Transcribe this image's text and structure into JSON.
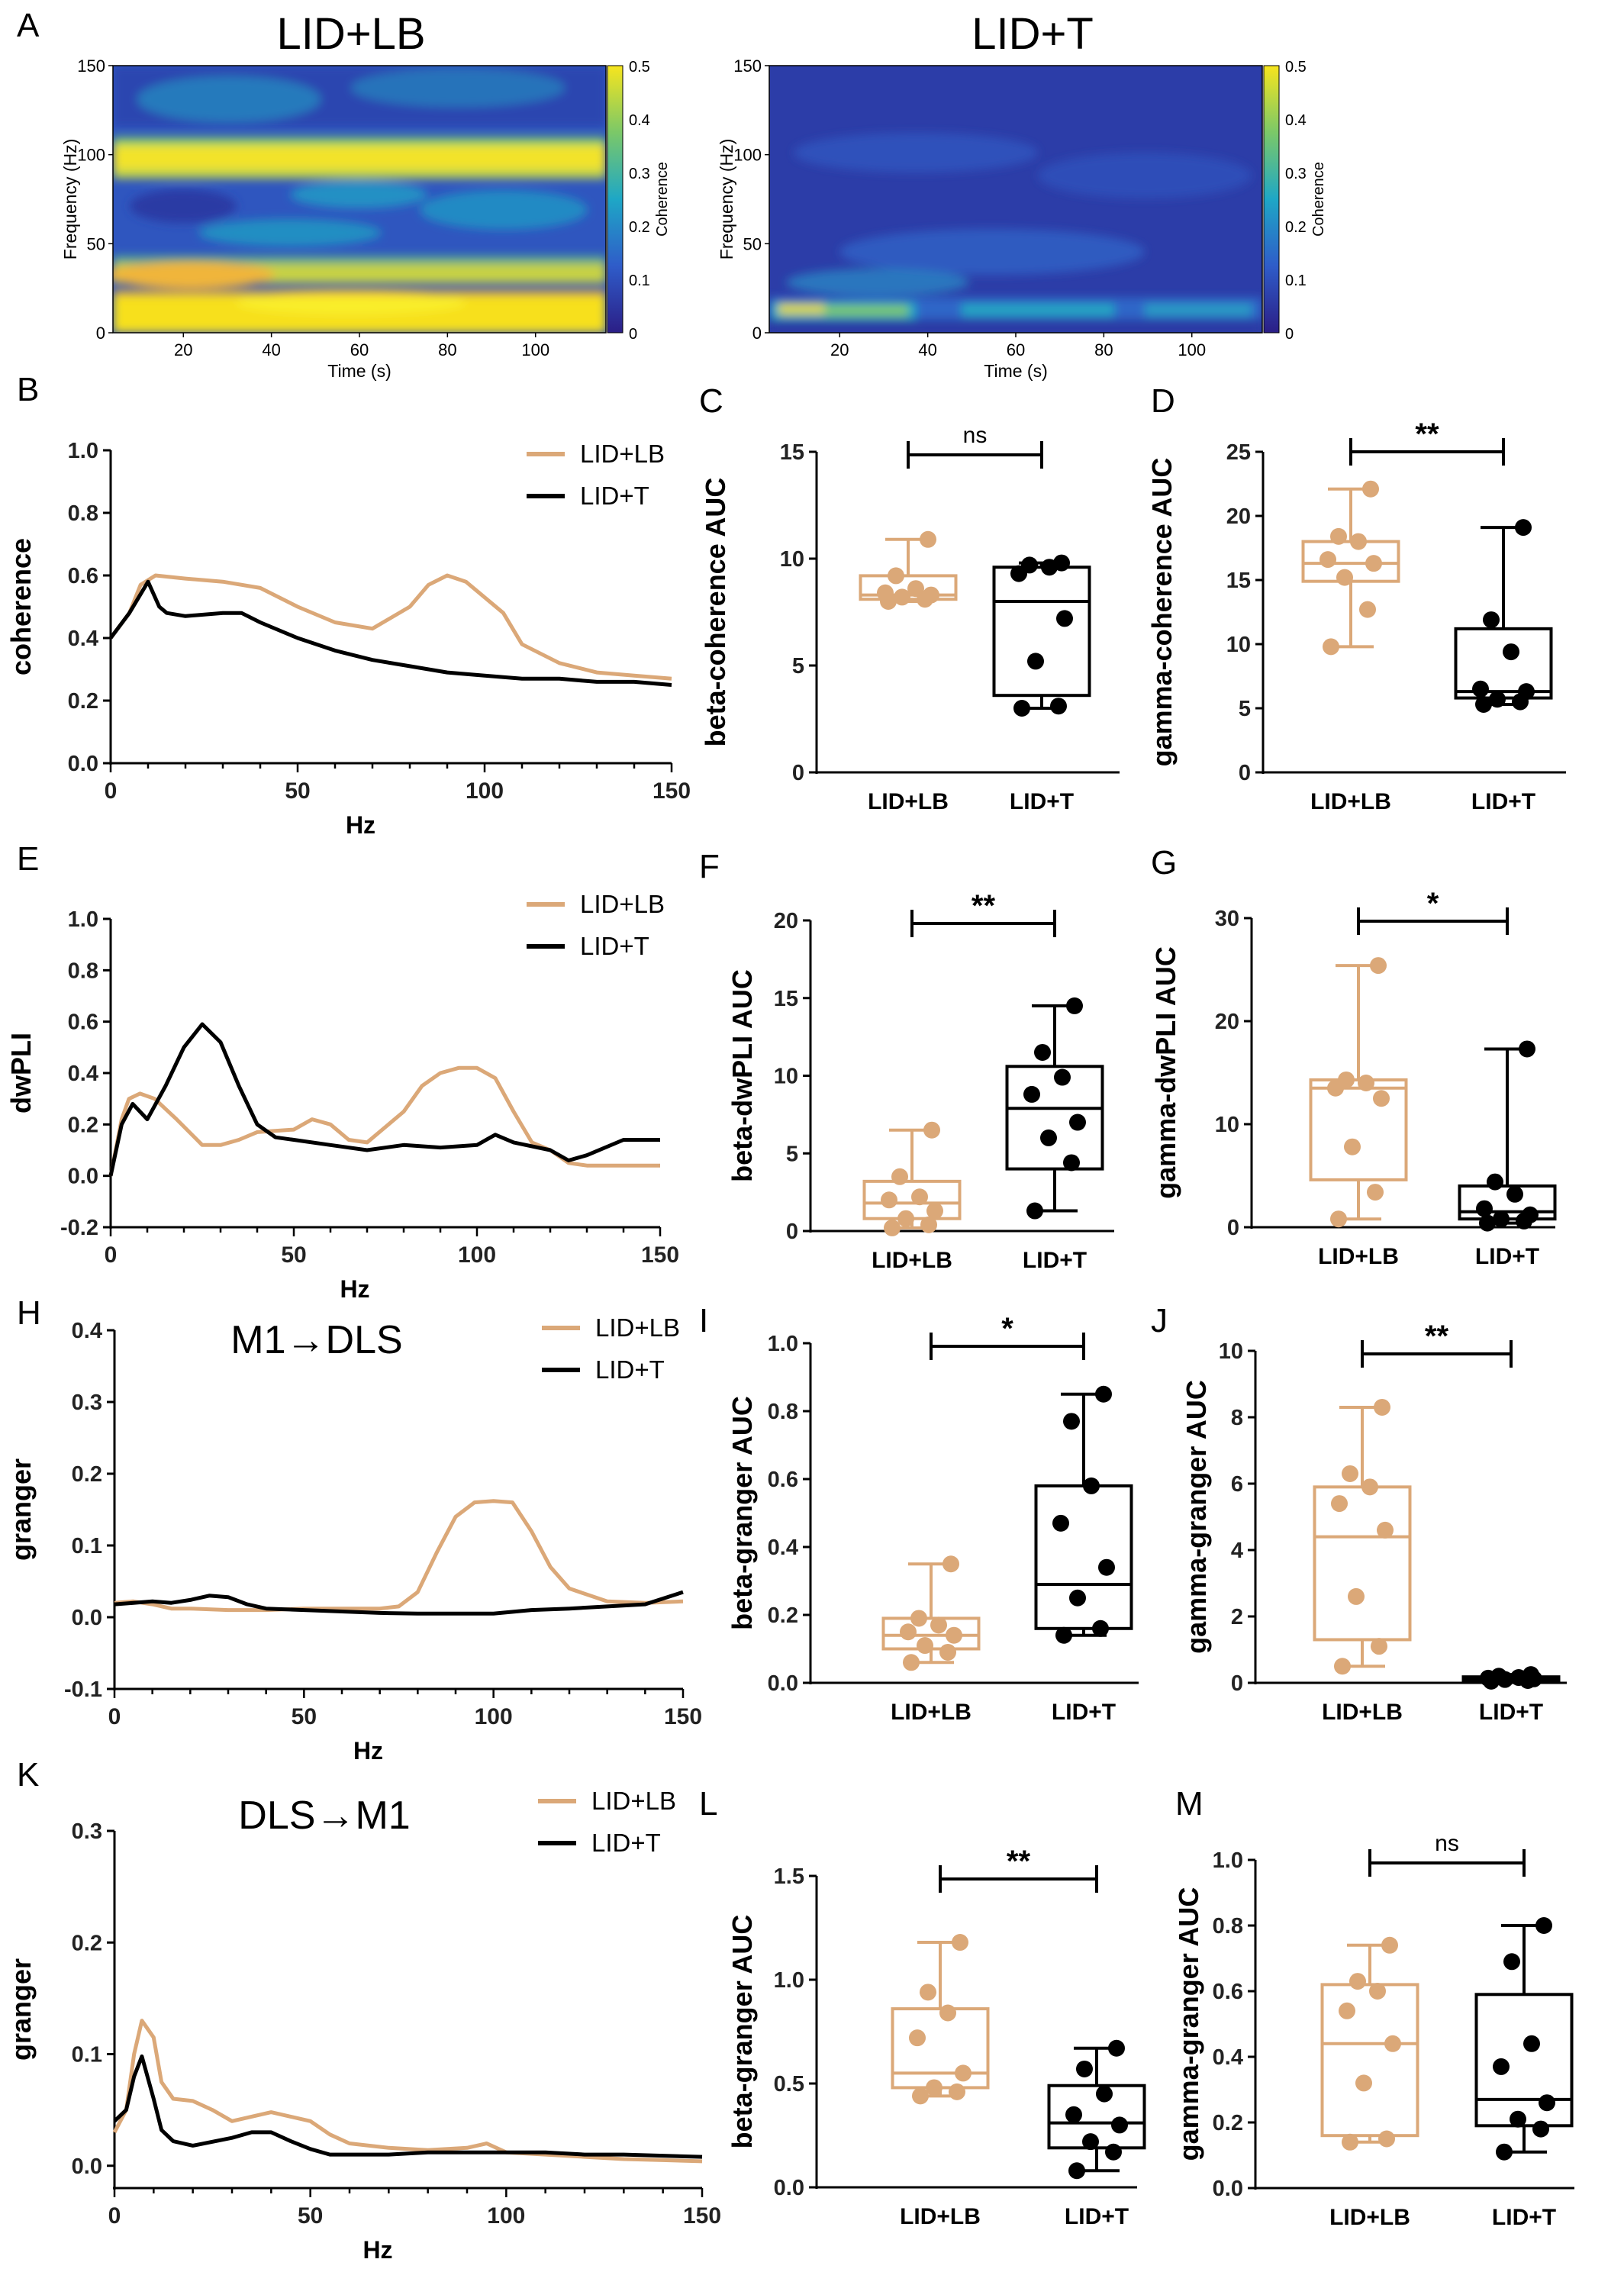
{
  "colors": {
    "lb": "#dba878",
    "t": "#000000"
  },
  "spectrograms": {
    "colorbar_ticks": [
      "0.5",
      "0.4",
      "0.3",
      "0.2",
      "0.1",
      "0"
    ],
    "colorbar_label": "Coherence",
    "ylabel": "Frequency (Hz)",
    "xlabel": "Time (s)",
    "yticks": [
      "150",
      "100",
      "50",
      "0"
    ],
    "xticks": [
      "20",
      "40",
      "60",
      "80",
      "100"
    ],
    "panels": [
      {
        "letter": "A",
        "title": "LID+LB"
      },
      {
        "letter": "",
        "title": "LID+T"
      }
    ]
  },
  "chart_data": [
    {
      "type": "line",
      "panel": "B",
      "title": "",
      "ylabel": "coherence",
      "xlabel": "Hz",
      "xlim": [
        0,
        150
      ],
      "ylim": [
        0,
        1
      ],
      "xticks": [
        "0",
        "50",
        "100",
        "150"
      ],
      "yticks": [
        "0.0",
        "0.2",
        "0.4",
        "0.6",
        "0.8",
        "1.0"
      ],
      "series": [
        {
          "name": "LID+LB",
          "x": [
            0,
            5,
            8,
            12,
            20,
            30,
            40,
            50,
            60,
            70,
            80,
            85,
            90,
            95,
            100,
            105,
            110,
            120,
            130,
            140,
            150
          ],
          "y": [
            0.4,
            0.48,
            0.57,
            0.6,
            0.59,
            0.58,
            0.56,
            0.5,
            0.45,
            0.43,
            0.5,
            0.57,
            0.6,
            0.58,
            0.53,
            0.48,
            0.38,
            0.32,
            0.29,
            0.28,
            0.27
          ]
        },
        {
          "name": "LID+T",
          "x": [
            0,
            5,
            10,
            13,
            15,
            20,
            30,
            35,
            40,
            50,
            60,
            70,
            80,
            90,
            100,
            110,
            120,
            130,
            140,
            150
          ],
          "y": [
            0.4,
            0.48,
            0.58,
            0.5,
            0.48,
            0.47,
            0.48,
            0.48,
            0.45,
            0.4,
            0.36,
            0.33,
            0.31,
            0.29,
            0.28,
            0.27,
            0.27,
            0.26,
            0.26,
            0.25
          ]
        }
      ]
    },
    {
      "type": "box",
      "panel": "C",
      "ylabel": "beta-coherence AUC",
      "ylim": [
        0,
        15
      ],
      "yticks": [
        "0",
        "5",
        "10",
        "15"
      ],
      "categories": [
        "LID+LB",
        "LID+T"
      ],
      "sig": "ns",
      "groups": [
        {
          "min": 8.0,
          "q1": 8.1,
          "median": 8.3,
          "q3": 9.2,
          "max": 10.9,
          "points": [
            8.0,
            8.1,
            8.2,
            8.3,
            8.4,
            8.6,
            9.2,
            10.9
          ]
        },
        {
          "min": 3.0,
          "q1": 3.6,
          "median": 8.0,
          "q3": 9.6,
          "max": 9.8,
          "points": [
            3.0,
            3.1,
            5.2,
            7.2,
            9.3,
            9.6,
            9.7,
            9.8
          ]
        }
      ]
    },
    {
      "type": "box",
      "panel": "D",
      "ylabel": "gamma-coherence AUC",
      "ylim": [
        0,
        25
      ],
      "yticks": [
        "0",
        "5",
        "10",
        "15",
        "20",
        "25"
      ],
      "categories": [
        "LID+LB",
        "LID+T"
      ],
      "sig": "**",
      "groups": [
        {
          "min": 9.8,
          "q1": 14.9,
          "median": 16.3,
          "q3": 18.0,
          "max": 22.1,
          "points": [
            9.8,
            12.7,
            15.2,
            16.3,
            16.6,
            18.0,
            18.4,
            22.1
          ]
        },
        {
          "min": 5.3,
          "q1": 5.8,
          "median": 6.3,
          "q3": 11.2,
          "max": 19.1,
          "points": [
            5.3,
            5.5,
            5.7,
            6.3,
            6.5,
            9.4,
            11.9,
            19.1
          ]
        }
      ]
    },
    {
      "type": "line",
      "panel": "E",
      "title": "",
      "ylabel": "dwPLI",
      "xlabel": "Hz",
      "xlim": [
        0,
        150
      ],
      "ylim": [
        -0.2,
        1
      ],
      "xticks": [
        "0",
        "50",
        "100",
        "150"
      ],
      "yticks": [
        "-0.2",
        "0.0",
        "0.2",
        "0.4",
        "0.6",
        "0.8",
        "1.0"
      ],
      "series": [
        {
          "name": "LID+LB",
          "x": [
            0,
            3,
            5,
            8,
            12,
            18,
            25,
            30,
            35,
            40,
            50,
            55,
            60,
            65,
            70,
            80,
            85,
            90,
            95,
            100,
            105,
            110,
            115,
            120,
            125,
            130,
            140,
            150
          ],
          "y": [
            0.0,
            0.22,
            0.3,
            0.32,
            0.3,
            0.22,
            0.12,
            0.12,
            0.14,
            0.17,
            0.18,
            0.22,
            0.2,
            0.14,
            0.13,
            0.25,
            0.35,
            0.4,
            0.42,
            0.42,
            0.38,
            0.25,
            0.13,
            0.1,
            0.05,
            0.04,
            0.04,
            0.04
          ]
        },
        {
          "name": "LID+T",
          "x": [
            0,
            3,
            6,
            10,
            15,
            20,
            25,
            30,
            35,
            40,
            45,
            50,
            60,
            70,
            80,
            90,
            100,
            105,
            110,
            120,
            125,
            130,
            140,
            150
          ],
          "y": [
            0.0,
            0.2,
            0.28,
            0.22,
            0.35,
            0.5,
            0.59,
            0.52,
            0.35,
            0.2,
            0.15,
            0.14,
            0.12,
            0.1,
            0.12,
            0.11,
            0.12,
            0.16,
            0.13,
            0.1,
            0.06,
            0.08,
            0.14,
            0.14
          ]
        }
      ]
    },
    {
      "type": "box",
      "panel": "F",
      "ylabel": "beta-dwPLI AUC",
      "ylim": [
        0,
        20
      ],
      "yticks": [
        "0",
        "5",
        "10",
        "15",
        "20"
      ],
      "categories": [
        "LID+LB",
        "LID+T"
      ],
      "sig": "**",
      "groups": [
        {
          "min": 0.2,
          "q1": 0.8,
          "median": 1.8,
          "q3": 3.2,
          "max": 6.5,
          "points": [
            0.2,
            0.4,
            0.8,
            1.3,
            2.0,
            2.2,
            3.5,
            6.5
          ]
        },
        {
          "min": 1.3,
          "q1": 4.0,
          "median": 7.9,
          "q3": 10.6,
          "max": 14.5,
          "points": [
            1.3,
            4.4,
            6.0,
            7.0,
            8.8,
            9.9,
            11.5,
            14.5
          ]
        }
      ]
    },
    {
      "type": "box",
      "panel": "G",
      "ylabel": "gamma-dwPLI AUC",
      "ylim": [
        0,
        30
      ],
      "yticks": [
        "0",
        "10",
        "20",
        "30"
      ],
      "categories": [
        "LID+LB",
        "LID+T"
      ],
      "sig": "*",
      "groups": [
        {
          "min": 0.8,
          "q1": 4.6,
          "median": 13.5,
          "q3": 14.3,
          "max": 25.4,
          "points": [
            0.8,
            3.4,
            7.8,
            12.5,
            13.5,
            14.0,
            14.3,
            25.4
          ]
        },
        {
          "min": 0.4,
          "q1": 0.8,
          "median": 1.5,
          "q3": 4.0,
          "max": 17.3,
          "points": [
            0.4,
            0.6,
            0.8,
            1.2,
            1.8,
            3.2,
            4.4,
            17.3
          ]
        }
      ]
    },
    {
      "type": "line",
      "panel": "H",
      "title": "M1→DLS",
      "ylabel": "granger",
      "xlabel": "Hz",
      "xlim": [
        0,
        150
      ],
      "ylim": [
        -0.1,
        0.4
      ],
      "xticks": [
        "0",
        "50",
        "100",
        "150"
      ],
      "yticks": [
        "-0.1",
        "0.0",
        "0.1",
        "0.2",
        "0.3",
        "0.4"
      ],
      "series": [
        {
          "name": "LID+LB",
          "x": [
            0,
            5,
            10,
            15,
            20,
            30,
            40,
            50,
            60,
            70,
            75,
            80,
            85,
            90,
            95,
            100,
            105,
            110,
            115,
            120,
            130,
            140,
            150
          ],
          "y": [
            0.02,
            0.022,
            0.018,
            0.012,
            0.012,
            0.01,
            0.01,
            0.012,
            0.012,
            0.012,
            0.015,
            0.035,
            0.09,
            0.14,
            0.16,
            0.162,
            0.16,
            0.12,
            0.07,
            0.04,
            0.022,
            0.02,
            0.022
          ]
        },
        {
          "name": "LID+T",
          "x": [
            0,
            5,
            10,
            15,
            20,
            25,
            30,
            35,
            40,
            50,
            60,
            70,
            80,
            90,
            100,
            110,
            120,
            130,
            140,
            150
          ],
          "y": [
            0.018,
            0.02,
            0.022,
            0.02,
            0.024,
            0.03,
            0.028,
            0.018,
            0.012,
            0.01,
            0.008,
            0.006,
            0.005,
            0.005,
            0.005,
            0.01,
            0.012,
            0.015,
            0.018,
            0.035
          ]
        }
      ]
    },
    {
      "type": "box",
      "panel": "I",
      "ylabel": "beta-granger AUC",
      "ylim": [
        0,
        1
      ],
      "yticks": [
        "0.0",
        "0.2",
        "0.4",
        "0.6",
        "0.8",
        "1.0"
      ],
      "categories": [
        "LID+LB",
        "LID+T"
      ],
      "sig": "*",
      "groups": [
        {
          "min": 0.06,
          "q1": 0.1,
          "median": 0.14,
          "q3": 0.19,
          "max": 0.35,
          "points": [
            0.06,
            0.09,
            0.11,
            0.14,
            0.15,
            0.17,
            0.19,
            0.35
          ]
        },
        {
          "min": 0.14,
          "q1": 0.16,
          "median": 0.29,
          "q3": 0.58,
          "max": 0.85,
          "points": [
            0.14,
            0.16,
            0.25,
            0.34,
            0.47,
            0.58,
            0.77,
            0.85
          ]
        }
      ]
    },
    {
      "type": "box",
      "panel": "J",
      "ylabel": "gamma-granger AUC",
      "ylim": [
        0,
        10
      ],
      "yticks": [
        "0",
        "2",
        "4",
        "6",
        "8",
        "10"
      ],
      "categories": [
        "LID+LB",
        "LID+T"
      ],
      "sig": "**",
      "groups": [
        {
          "min": 0.5,
          "q1": 1.3,
          "median": 4.4,
          "q3": 5.9,
          "max": 8.3,
          "points": [
            0.5,
            1.1,
            2.6,
            4.6,
            5.4,
            5.9,
            6.3,
            8.3
          ]
        },
        {
          "min": 0.05,
          "q1": 0.08,
          "median": 0.12,
          "q3": 0.18,
          "max": 0.25,
          "points": [
            0.05,
            0.07,
            0.1,
            0.12,
            0.14,
            0.16,
            0.2,
            0.25
          ]
        }
      ]
    },
    {
      "type": "line",
      "panel": "K",
      "title": "DLS→M1",
      "ylabel": "granger",
      "xlabel": "Hz",
      "xlim": [
        0,
        150
      ],
      "ylim": [
        -0.02,
        0.3
      ],
      "xticks": [
        "0",
        "50",
        "100",
        "150"
      ],
      "yticks": [
        "0.0",
        "0.1",
        "0.2",
        "0.3"
      ],
      "series": [
        {
          "name": "LID+LB",
          "x": [
            0,
            3,
            5,
            7,
            10,
            12,
            15,
            20,
            25,
            30,
            40,
            50,
            55,
            60,
            70,
            80,
            90,
            95,
            100,
            110,
            120,
            130,
            140,
            150
          ],
          "y": [
            0.03,
            0.05,
            0.1,
            0.13,
            0.115,
            0.075,
            0.06,
            0.058,
            0.05,
            0.04,
            0.048,
            0.04,
            0.028,
            0.02,
            0.016,
            0.014,
            0.016,
            0.02,
            0.012,
            0.01,
            0.008,
            0.006,
            0.005,
            0.004
          ]
        },
        {
          "name": "LID+T",
          "x": [
            0,
            3,
            5,
            7,
            10,
            12,
            15,
            20,
            30,
            35,
            40,
            45,
            50,
            55,
            60,
            70,
            80,
            90,
            100,
            110,
            120,
            130,
            140,
            150
          ],
          "y": [
            0.04,
            0.05,
            0.08,
            0.098,
            0.06,
            0.032,
            0.022,
            0.018,
            0.025,
            0.03,
            0.03,
            0.022,
            0.015,
            0.01,
            0.01,
            0.01,
            0.012,
            0.012,
            0.012,
            0.012,
            0.01,
            0.01,
            0.009,
            0.008
          ]
        }
      ]
    },
    {
      "type": "box",
      "panel": "L",
      "ylabel": "beta-granger AUC",
      "ylim": [
        0,
        1.5
      ],
      "yticks": [
        "0.0",
        "0.5",
        "1.0",
        "1.5"
      ],
      "categories": [
        "LID+LB",
        "LID+T"
      ],
      "sig": "**",
      "groups": [
        {
          "min": 0.44,
          "q1": 0.48,
          "median": 0.55,
          "q3": 0.86,
          "max": 1.18,
          "points": [
            0.44,
            0.46,
            0.48,
            0.55,
            0.72,
            0.84,
            0.94,
            1.18
          ]
        },
        {
          "min": 0.08,
          "q1": 0.19,
          "median": 0.31,
          "q3": 0.49,
          "max": 0.67,
          "points": [
            0.08,
            0.17,
            0.22,
            0.3,
            0.35,
            0.45,
            0.57,
            0.67
          ]
        }
      ]
    },
    {
      "type": "box",
      "panel": "M",
      "ylabel": "gamma-granger AUC",
      "ylim": [
        0,
        1
      ],
      "yticks": [
        "0.0",
        "0.2",
        "0.4",
        "0.6",
        "0.8",
        "1.0"
      ],
      "categories": [
        "LID+LB",
        "LID+T"
      ],
      "sig": "ns",
      "groups": [
        {
          "min": 0.14,
          "q1": 0.16,
          "median": 0.44,
          "q3": 0.62,
          "max": 0.74,
          "points": [
            0.14,
            0.15,
            0.32,
            0.44,
            0.54,
            0.6,
            0.63,
            0.74
          ]
        },
        {
          "min": 0.11,
          "q1": 0.19,
          "median": 0.27,
          "q3": 0.59,
          "max": 0.8,
          "points": [
            0.11,
            0.18,
            0.21,
            0.26,
            0.37,
            0.44,
            0.69,
            0.8
          ]
        }
      ]
    }
  ]
}
